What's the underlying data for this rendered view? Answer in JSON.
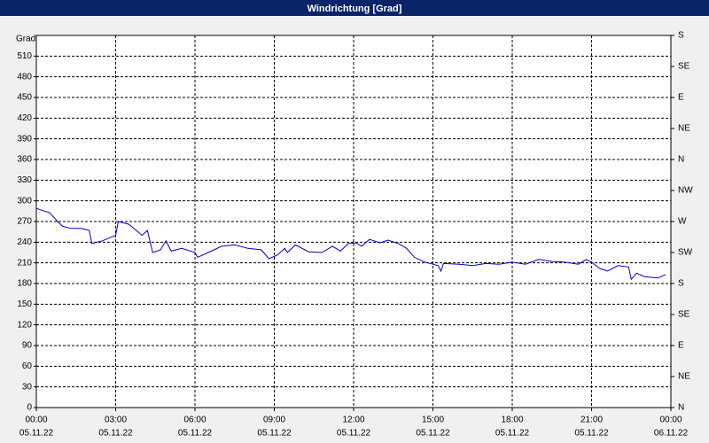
{
  "chart_data": {
    "type": "line",
    "title": "Windrichtung [Grad]",
    "y_label": "Grad",
    "series": [
      {
        "color": "#0000c0",
        "x": [
          0,
          0.3,
          0.5,
          0.8,
          1.0,
          1.3,
          1.7,
          2.0,
          2.1,
          2.5,
          3.0,
          3.1,
          3.5,
          4.0,
          4.2,
          4.4,
          4.7,
          4.9,
          5.1,
          5.5,
          6.0,
          6.1,
          6.5,
          7.0,
          7.5,
          8.0,
          8.5,
          8.8,
          9.1,
          9.4,
          9.5,
          9.8,
          10.3,
          10.8,
          11.2,
          11.5,
          11.8,
          12.1,
          12.3,
          12.6,
          13.0,
          13.3,
          13.7,
          14.0,
          14.3,
          14.7,
          15.0,
          15.2,
          15.3,
          15.4,
          16.0,
          16.5,
          17.0,
          17.5,
          18.0,
          18.5,
          19.0,
          19.5,
          20.0,
          20.5,
          20.8,
          21.0,
          21.3,
          21.6,
          22.0,
          22.4,
          22.5,
          22.7,
          23.0,
          23.5,
          23.8
        ],
        "values": [
          289,
          285,
          283,
          270,
          263,
          260,
          260,
          257,
          238,
          242,
          250,
          270,
          266,
          250,
          257,
          225,
          229,
          242,
          227,
          231,
          225,
          218,
          225,
          234,
          236,
          231,
          229,
          216,
          221,
          231,
          225,
          236,
          226,
          225,
          234,
          227,
          238,
          239,
          234,
          244,
          239,
          243,
          238,
          231,
          218,
          211,
          208,
          206,
          198,
          209,
          208,
          206,
          209,
          208,
          211,
          208,
          215,
          212,
          211,
          208,
          215,
          211,
          202,
          198,
          206,
          204,
          186,
          195,
          190,
          188,
          193
        ]
      }
    ],
    "xlim": [
      0,
      24
    ],
    "xticks": [
      {
        "value": 0,
        "label": "00:00"
      },
      {
        "value": 3,
        "label": "03:00"
      },
      {
        "value": 6,
        "label": "06:00"
      },
      {
        "value": 9,
        "label": "09:00"
      },
      {
        "value": 12,
        "label": "12:00"
      },
      {
        "value": 15,
        "label": "15:00"
      },
      {
        "value": 18,
        "label": "18:00"
      },
      {
        "value": 21,
        "label": "21:00"
      },
      {
        "value": 24,
        "label": "00:00"
      }
    ],
    "xtick_dates": [
      "05.11.22",
      "05.11.22",
      "05.11.22",
      "05.11.22",
      "05.11.22",
      "05.11.22",
      "05.11.22",
      "05.11.22",
      "06.11.22"
    ],
    "ylim": [
      0,
      540
    ],
    "yticks": [
      0,
      30,
      60,
      90,
      120,
      150,
      180,
      210,
      240,
      270,
      300,
      330,
      360,
      390,
      420,
      450,
      480,
      510
    ],
    "y2lim": [
      0,
      540
    ],
    "y2ticks": [
      {
        "value": 0,
        "label": "N"
      },
      {
        "value": 45,
        "label": "NE"
      },
      {
        "value": 90,
        "label": "E"
      },
      {
        "value": 135,
        "label": "SE"
      },
      {
        "value": 180,
        "label": "S"
      },
      {
        "value": 225,
        "label": "SW"
      },
      {
        "value": 270,
        "label": "W"
      },
      {
        "value": 315,
        "label": "NW"
      },
      {
        "value": 360,
        "label": "N"
      },
      {
        "value": 405,
        "label": "NE"
      },
      {
        "value": 450,
        "label": "E"
      },
      {
        "value": 495,
        "label": "SE"
      },
      {
        "value": 540,
        "label": "S"
      }
    ],
    "grid": true
  }
}
